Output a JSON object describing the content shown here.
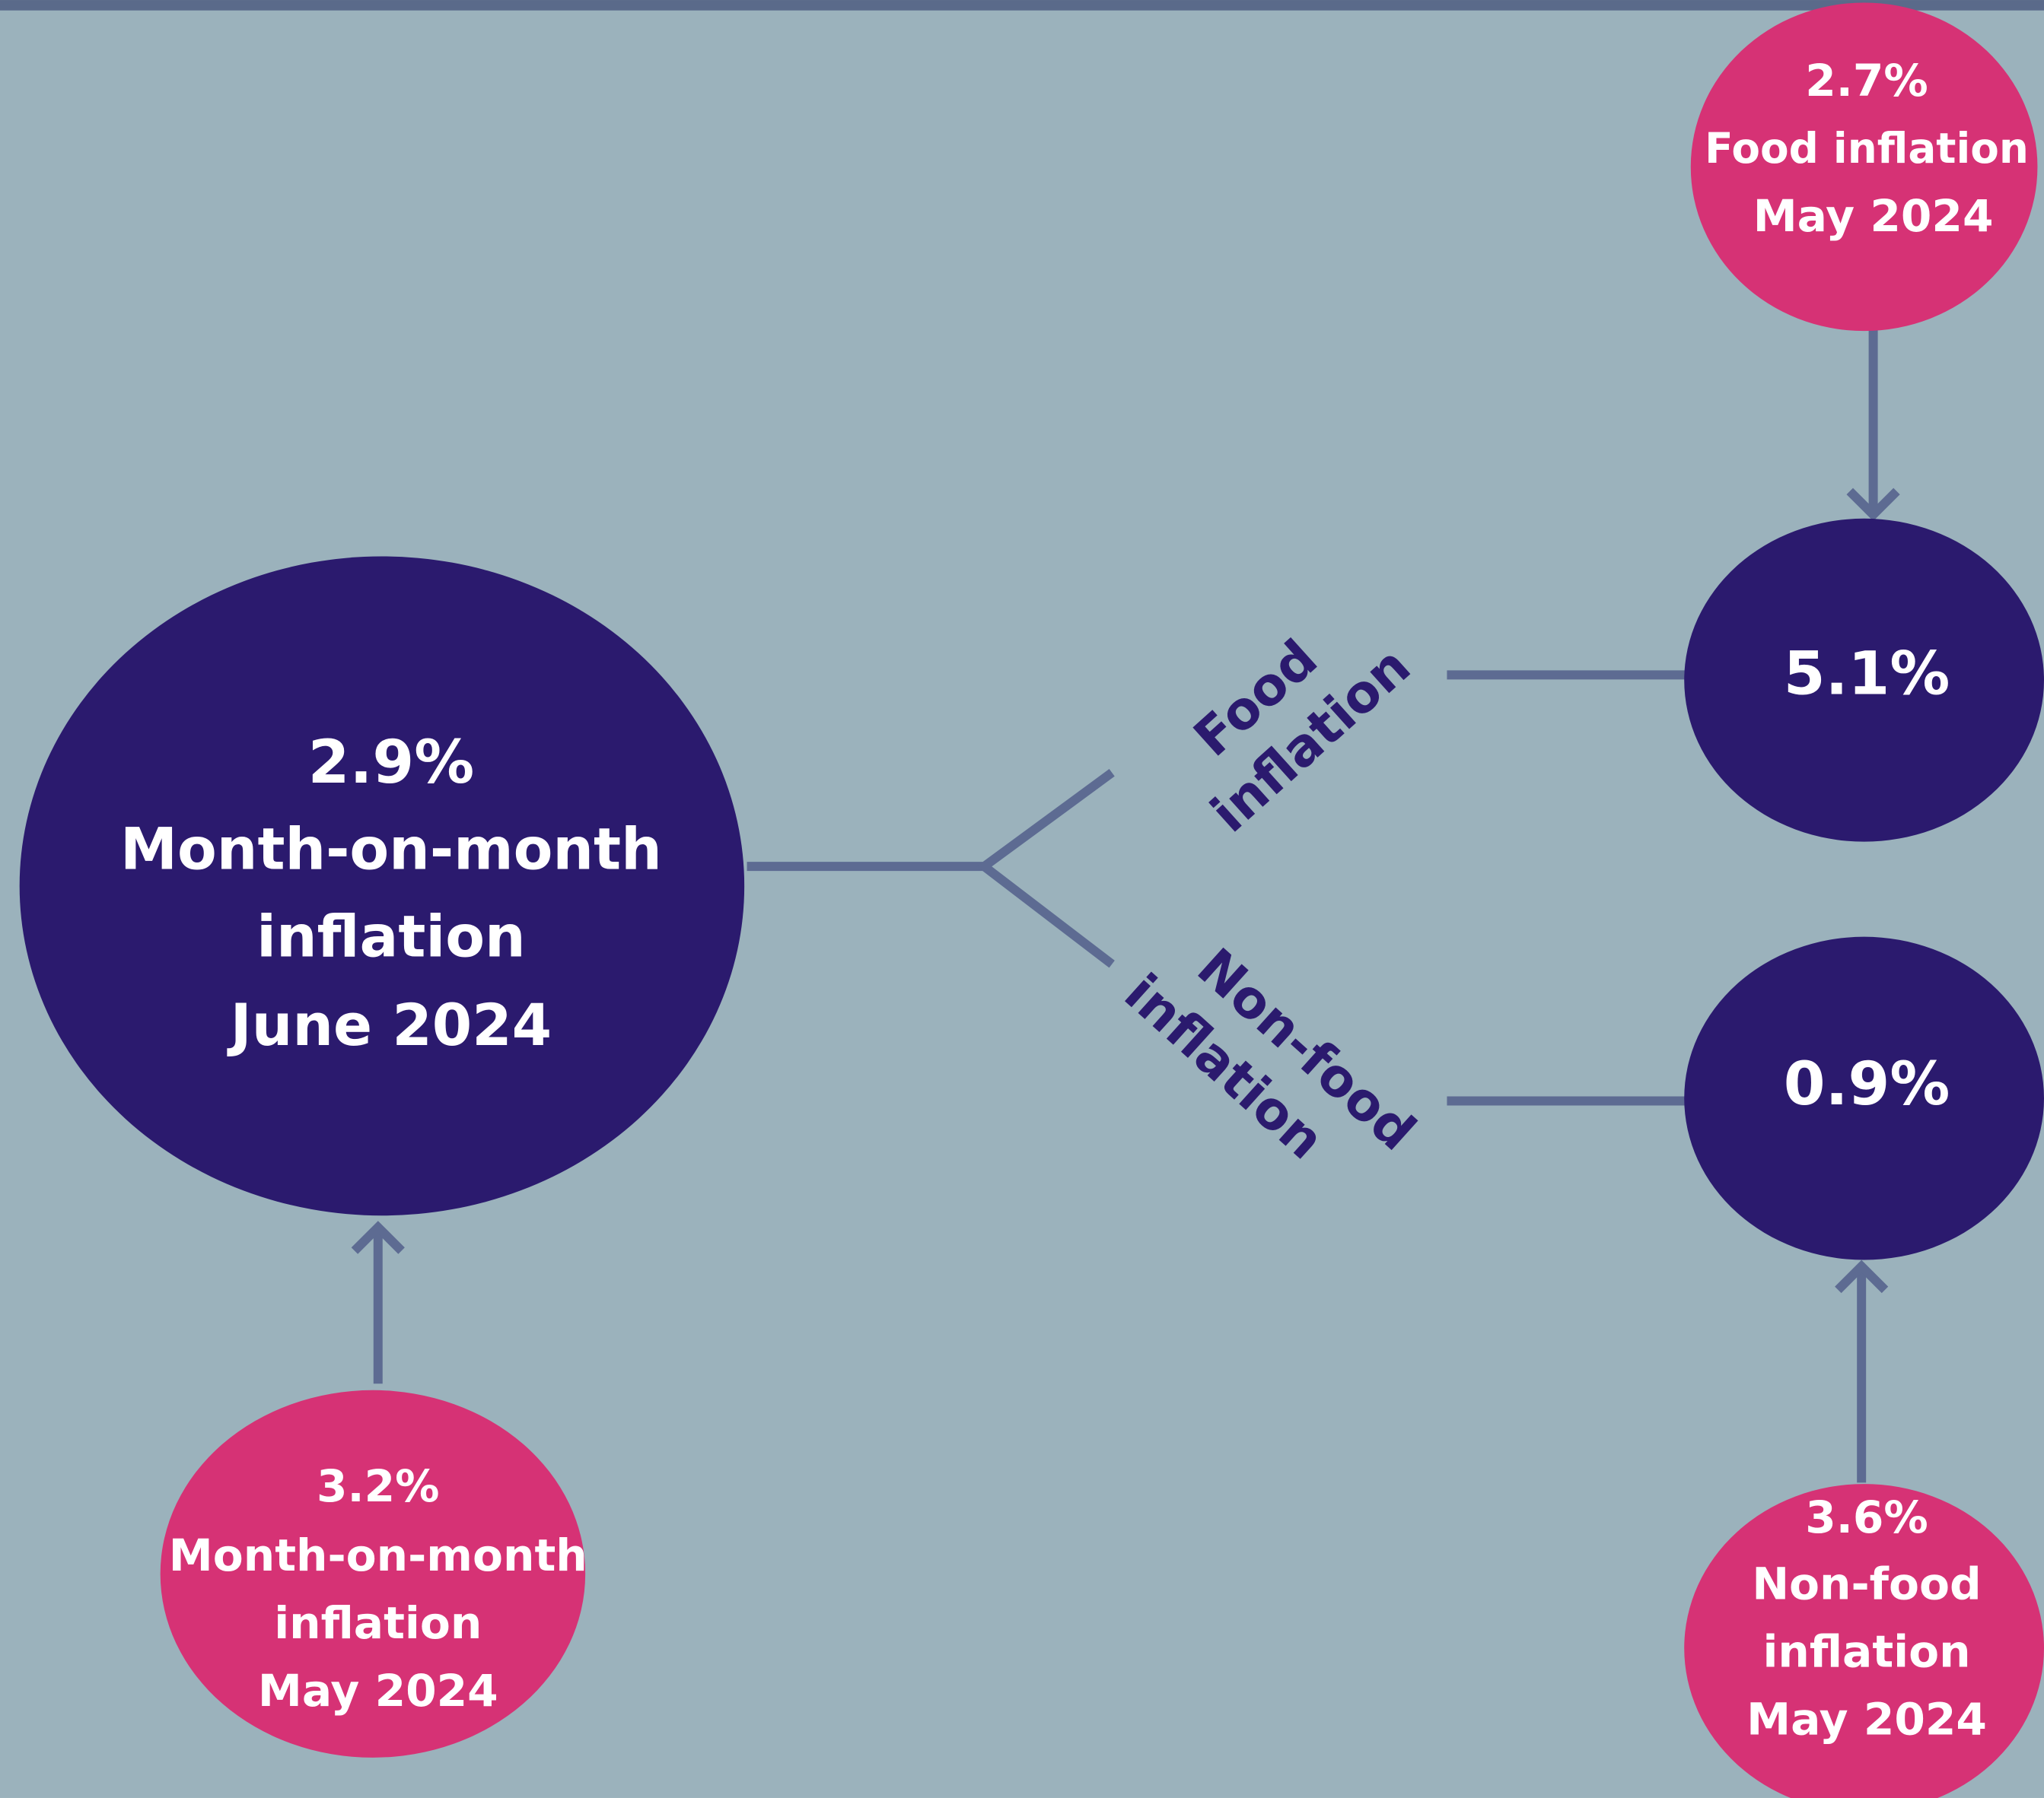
{
  "nodes": [
    {
      "value": "2.9%",
      "lines": [
        "Month-on-month",
        "inflation",
        "June 2024"
      ]
    },
    {
      "value": "3.2%",
      "lines": [
        "Month-on-month",
        "inflation",
        "May 2024"
      ]
    },
    {
      "value": "5.1%"
    },
    {
      "value": "0.9%"
    },
    {
      "value": "2.7%",
      "lines": [
        "Food inflation",
        "May 2024"
      ]
    },
    {
      "value": "3.6%",
      "lines": [
        "Non-food",
        "inflation",
        "May 2024"
      ]
    }
  ],
  "branches": [
    {
      "lines": [
        "Food",
        "inflation"
      ]
    },
    {
      "lines": [
        "Non-food",
        "inflation"
      ]
    }
  ]
}
